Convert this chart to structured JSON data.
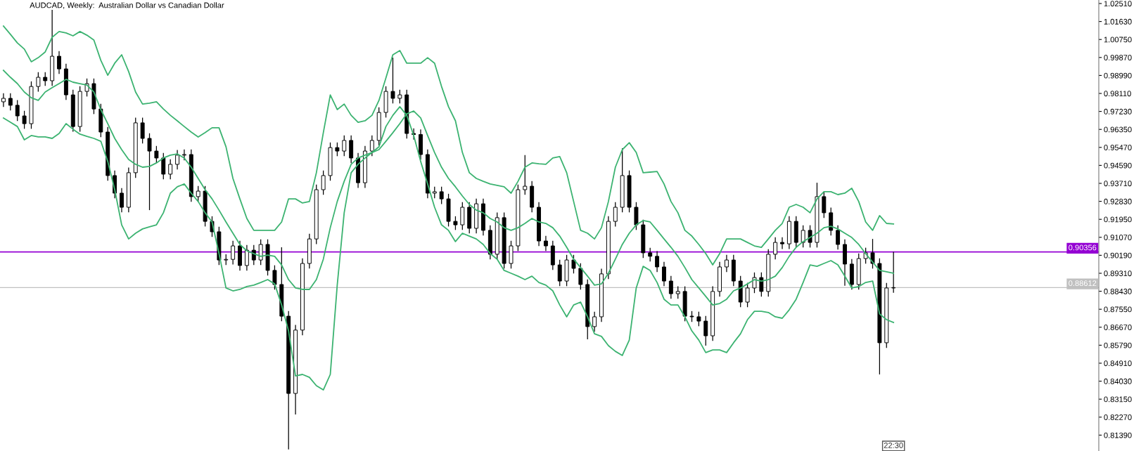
{
  "chart_data": {
    "type": "candlestick",
    "title": "AUDCAD, Weekly:  Australian Dollar vs Canadian Dollar",
    "categories": [
      null,
      null,
      null,
      null,
      null,
      null,
      null,
      null,
      null,
      null,
      null,
      null,
      null,
      null,
      null,
      null,
      null,
      null,
      null,
      null,
      null,
      null,
      null,
      null,
      null,
      null,
      null,
      null,
      null,
      null,
      null,
      null,
      null,
      null,
      null,
      null,
      null,
      null,
      null,
      null,
      null,
      null,
      null,
      null,
      null,
      null,
      null,
      null,
      null,
      null,
      null,
      null,
      null,
      null,
      null,
      null,
      null,
      null,
      null,
      null,
      null,
      null,
      null,
      null,
      null,
      null,
      null,
      null,
      null,
      null,
      null,
      null,
      null,
      null,
      null,
      null,
      null,
      null,
      null,
      null,
      null,
      null,
      null,
      null,
      null,
      null,
      null,
      null,
      null,
      null,
      null,
      null,
      null,
      null,
      null,
      null,
      null,
      null,
      null,
      null,
      null,
      null,
      null,
      null,
      null,
      null,
      null,
      null,
      null,
      null,
      null,
      null,
      null,
      null,
      null,
      null,
      null,
      null,
      null,
      null,
      null,
      null,
      null,
      null,
      null,
      null,
      null,
      null,
      null
    ],
    "ohlc": [
      [
        0.977,
        0.9812,
        0.9745,
        0.9787
      ],
      [
        0.9787,
        0.9812,
        0.9728,
        0.9753
      ],
      [
        0.9753,
        0.9778,
        0.9676,
        0.9701
      ],
      [
        0.9701,
        0.9726,
        0.9638,
        0.9663
      ],
      [
        0.9663,
        0.987,
        0.9638,
        0.9845
      ],
      [
        0.9845,
        0.9915,
        0.982,
        0.989
      ],
      [
        0.989,
        0.9915,
        0.9848,
        0.9873
      ],
      [
        0.9873,
        1.022,
        0.9848,
        0.9993
      ],
      [
        0.9993,
        1.0018,
        0.9906,
        0.9931
      ],
      [
        0.9931,
        0.9956,
        0.9779,
        0.9804
      ],
      [
        0.9804,
        0.9829,
        0.9624,
        0.9649
      ],
      [
        0.9649,
        0.9846,
        0.9624,
        0.9821
      ],
      [
        0.9821,
        0.9884,
        0.9796,
        0.9859
      ],
      [
        0.9859,
        0.9884,
        0.971,
        0.9735
      ],
      [
        0.9735,
        0.976,
        0.9597,
        0.9622
      ],
      [
        0.9622,
        0.9647,
        0.9384,
        0.9409
      ],
      [
        0.9409,
        0.9434,
        0.9298,
        0.9323
      ],
      [
        0.9323,
        0.9348,
        0.9229,
        0.9254
      ],
      [
        0.9254,
        0.9448,
        0.9229,
        0.9423
      ],
      [
        0.9423,
        0.9692,
        0.9398,
        0.9667
      ],
      [
        0.9667,
        0.9692,
        0.9566,
        0.9591
      ],
      [
        0.9591,
        0.9616,
        0.924,
        0.9529
      ],
      [
        0.9529,
        0.9554,
        0.947,
        0.9495
      ],
      [
        0.9495,
        0.952,
        0.9391,
        0.9416
      ],
      [
        0.9416,
        0.9489,
        0.9391,
        0.9464
      ],
      [
        0.9464,
        0.9534,
        0.9439,
        0.9509
      ],
      [
        0.9509,
        0.9537,
        0.9484,
        0.9512
      ],
      [
        0.9512,
        0.9537,
        0.9281,
        0.9306
      ],
      [
        0.9306,
        0.9358,
        0.9281,
        0.9333
      ],
      [
        0.9333,
        0.9358,
        0.916,
        0.9185
      ],
      [
        0.9185,
        0.921,
        0.9109,
        0.9134
      ],
      [
        0.9134,
        0.9159,
        0.8971,
        0.8996
      ],
      [
        0.8996,
        0.9024,
        0.8971,
        0.8999
      ],
      [
        0.8999,
        0.909,
        0.8974,
        0.9065
      ],
      [
        0.9065,
        0.909,
        0.8944,
        0.8969
      ],
      [
        0.8969,
        0.9069,
        0.8944,
        0.9044
      ],
      [
        0.9044,
        0.9069,
        0.8971,
        0.8996
      ],
      [
        0.8996,
        0.9097,
        0.8971,
        0.9072
      ],
      [
        0.9072,
        0.9097,
        0.892,
        0.8945
      ],
      [
        0.8945,
        0.897,
        0.8851,
        0.8876
      ],
      [
        0.8876,
        0.9058,
        0.8696,
        0.8721
      ],
      [
        0.8721,
        0.8746,
        0.8069,
        0.8343
      ],
      [
        0.8343,
        0.8678,
        0.824,
        0.8653
      ],
      [
        0.8653,
        0.9004,
        0.8628,
        0.8979
      ],
      [
        0.8979,
        0.9124,
        0.8954,
        0.9099
      ],
      [
        0.9099,
        0.9365,
        0.9074,
        0.934
      ],
      [
        0.934,
        0.9434,
        0.9315,
        0.9409
      ],
      [
        0.9409,
        0.9571,
        0.9384,
        0.9546
      ],
      [
        0.9546,
        0.9571,
        0.9504,
        0.9529
      ],
      [
        0.9529,
        0.9606,
        0.9504,
        0.9581
      ],
      [
        0.9581,
        0.9606,
        0.947,
        0.9495
      ],
      [
        0.9495,
        0.952,
        0.9349,
        0.9374
      ],
      [
        0.9374,
        0.9554,
        0.9349,
        0.9529
      ],
      [
        0.9529,
        0.9606,
        0.9504,
        0.9581
      ],
      [
        0.9581,
        0.9743,
        0.9556,
        0.9718
      ],
      [
        0.9718,
        0.9846,
        0.9693,
        0.9821
      ],
      [
        0.9821,
        0.9986,
        0.9762,
        0.9787
      ],
      [
        0.9787,
        0.9829,
        0.9762,
        0.9804
      ],
      [
        0.9804,
        0.9829,
        0.959,
        0.9615
      ],
      [
        0.9615,
        0.964,
        0.9585,
        0.961
      ],
      [
        0.961,
        0.9635,
        0.9487,
        0.9512
      ],
      [
        0.9512,
        0.9537,
        0.9298,
        0.9323
      ],
      [
        0.9323,
        0.9355,
        0.9298,
        0.933
      ],
      [
        0.933,
        0.9355,
        0.927,
        0.9295
      ],
      [
        0.9295,
        0.932,
        0.916,
        0.9185
      ],
      [
        0.9185,
        0.921,
        0.9143,
        0.9168
      ],
      [
        0.9168,
        0.9279,
        0.9143,
        0.9254
      ],
      [
        0.9254,
        0.9279,
        0.9126,
        0.9151
      ],
      [
        0.9151,
        0.9296,
        0.9126,
        0.9271
      ],
      [
        0.9271,
        0.9296,
        0.9116,
        0.9141
      ],
      [
        0.9141,
        0.9166,
        0.8999,
        0.9024
      ],
      [
        0.9024,
        0.9228,
        0.8999,
        0.9203
      ],
      [
        0.9203,
        0.9228,
        0.8954,
        0.8979
      ],
      [
        0.8979,
        0.909,
        0.8954,
        0.9065
      ],
      [
        0.9065,
        0.9365,
        0.904,
        0.934
      ],
      [
        0.934,
        0.9509,
        0.9315,
        0.9357
      ],
      [
        0.9357,
        0.9382,
        0.9229,
        0.9254
      ],
      [
        0.9254,
        0.9279,
        0.9064,
        0.9089
      ],
      [
        0.9089,
        0.9114,
        0.904,
        0.9065
      ],
      [
        0.9065,
        0.909,
        0.8947,
        0.8972
      ],
      [
        0.8972,
        0.8997,
        0.8868,
        0.8893
      ],
      [
        0.8893,
        0.9021,
        0.8868,
        0.8996
      ],
      [
        0.8996,
        0.9021,
        0.893,
        0.8955
      ],
      [
        0.8955,
        0.898,
        0.8851,
        0.8876
      ],
      [
        0.8876,
        0.8901,
        0.8608,
        0.867
      ],
      [
        0.867,
        0.8743,
        0.8645,
        0.8718
      ],
      [
        0.8718,
        0.8953,
        0.8693,
        0.8928
      ],
      [
        0.8928,
        0.921,
        0.8903,
        0.9185
      ],
      [
        0.9185,
        0.9279,
        0.916,
        0.9254
      ],
      [
        0.9254,
        0.9543,
        0.9229,
        0.9409
      ],
      [
        0.9409,
        0.9434,
        0.9229,
        0.9254
      ],
      [
        0.9254,
        0.9279,
        0.9143,
        0.9168
      ],
      [
        0.9168,
        0.9193,
        0.9006,
        0.9031
      ],
      [
        0.9031,
        0.9056,
        0.8989,
        0.9014
      ],
      [
        0.9014,
        0.9039,
        0.8937,
        0.8962
      ],
      [
        0.8962,
        0.8987,
        0.8868,
        0.8893
      ],
      [
        0.8893,
        0.8918,
        0.8806,
        0.8831
      ],
      [
        0.8831,
        0.8867,
        0.8806,
        0.8842
      ],
      [
        0.8842,
        0.8867,
        0.8696,
        0.8721
      ],
      [
        0.8721,
        0.8746,
        0.8693,
        0.8718
      ],
      [
        0.8718,
        0.8743,
        0.8672,
        0.8697
      ],
      [
        0.8697,
        0.8722,
        0.8577,
        0.8625
      ],
      [
        0.8625,
        0.8867,
        0.86,
        0.8842
      ],
      [
        0.8842,
        0.8987,
        0.8817,
        0.8962
      ],
      [
        0.8962,
        0.9021,
        0.8937,
        0.8996
      ],
      [
        0.8996,
        0.9021,
        0.8868,
        0.8893
      ],
      [
        0.8893,
        0.8918,
        0.8765,
        0.879
      ],
      [
        0.879,
        0.8884,
        0.8765,
        0.8859
      ],
      [
        0.8859,
        0.8935,
        0.8834,
        0.891
      ],
      [
        0.891,
        0.8935,
        0.8817,
        0.8842
      ],
      [
        0.8842,
        0.9049,
        0.8817,
        0.9024
      ],
      [
        0.9024,
        0.9107,
        0.8999,
        0.9082
      ],
      [
        0.9082,
        0.9107,
        0.905,
        0.9075
      ],
      [
        0.9075,
        0.921,
        0.905,
        0.9185
      ],
      [
        0.9185,
        0.921,
        0.9057,
        0.9082
      ],
      [
        0.9082,
        0.9166,
        0.9057,
        0.9141
      ],
      [
        0.9141,
        0.9166,
        0.9057,
        0.9082
      ],
      [
        0.9082,
        0.9374,
        0.9057,
        0.9306
      ],
      [
        0.9306,
        0.9331,
        0.9202,
        0.9227
      ],
      [
        0.9227,
        0.9252,
        0.9116,
        0.9141
      ],
      [
        0.9141,
        0.9166,
        0.9047,
        0.9072
      ],
      [
        0.9072,
        0.9097,
        0.887,
        0.8976
      ],
      [
        0.8976,
        0.9001,
        0.8851,
        0.8876
      ],
      [
        0.8876,
        0.9028,
        0.8851,
        0.9003
      ],
      [
        0.9003,
        0.9056,
        0.8978,
        0.9031
      ],
      [
        0.9031,
        0.9099,
        0.8954,
        0.8979
      ],
      [
        0.8979,
        0.9004,
        0.8436,
        0.8591
      ],
      [
        0.8591,
        0.8884,
        0.8566,
        0.8859
      ],
      [
        0.8859,
        0.9036,
        0.8836,
        0.8861
      ]
    ],
    "series": [
      {
        "type": "line",
        "color": "#3cb371",
        "values": [
          1.0141,
          1.01,
          1.0058,
          1.0028,
          0.9966,
          0.9986,
          1.0014,
          1.0086,
          1.0114,
          1.0107,
          1.0093,
          1.0114,
          1.0096,
          1.0072,
          0.9973,
          0.99,
          0.9959,
          1.0,
          0.9918,
          0.9818,
          0.9759,
          0.9763,
          0.977,
          0.9735,
          0.9704,
          0.9677,
          0.9649,
          0.9622,
          0.9598,
          0.9619,
          0.9643,
          0.9643,
          0.955,
          0.9395,
          0.9295,
          0.9199,
          0.9141,
          0.9141,
          0.9141,
          0.9141,
          0.9182,
          0.9295,
          0.9295,
          0.9275,
          0.9282,
          0.9423,
          0.9619,
          0.9804,
          0.9732,
          0.9759,
          0.9704,
          0.967,
          0.9677,
          0.9704,
          0.9777,
          0.9887,
          1.0,
          1.0021,
          0.9959,
          0.9959,
          0.9959,
          0.9986,
          0.9959,
          0.9845,
          0.9746,
          0.9677,
          0.9522,
          0.9423,
          0.9395,
          0.9381,
          0.9368,
          0.9361,
          0.9354,
          0.9323,
          0.9381,
          0.945,
          0.9471,
          0.9467,
          0.9464,
          0.9495,
          0.9502,
          0.9423,
          0.9282,
          0.9141,
          0.9127,
          0.9099,
          0.9154,
          0.9282,
          0.945,
          0.9536,
          0.957,
          0.9522,
          0.9423,
          0.9426,
          0.9429,
          0.9368,
          0.9282,
          0.9227,
          0.9141,
          0.9113,
          0.9072,
          0.9027,
          0.8972,
          0.9027,
          0.9099,
          0.9099,
          0.9099,
          0.9082,
          0.9065,
          0.9058,
          0.9099,
          0.9141,
          0.9175,
          0.9254,
          0.9268,
          0.9254,
          0.9227,
          0.9295,
          0.933,
          0.933,
          0.9316,
          0.9323,
          0.9347,
          0.9282,
          0.9182,
          0.9141,
          0.9213,
          0.9175,
          0.9172
        ]
      },
      {
        "type": "line",
        "color": "#3cb371",
        "values": [
          0.9924,
          0.989,
          0.9859,
          0.9818,
          0.979,
          0.9777,
          0.9818,
          0.9839,
          0.9859,
          0.988,
          0.9866,
          0.9859,
          0.9852,
          0.9818,
          0.9732,
          0.9663,
          0.9591,
          0.9536,
          0.9488,
          0.9464,
          0.945,
          0.9454,
          0.9471,
          0.9495,
          0.9509,
          0.9515,
          0.9495,
          0.945,
          0.9395,
          0.934,
          0.9295,
          0.924,
          0.9182,
          0.9127,
          0.9072,
          0.9041,
          0.9027,
          0.9014,
          0.902,
          0.9014,
          0.8972,
          0.89,
          0.8859,
          0.8852,
          0.8852,
          0.89,
          0.9,
          0.9154,
          0.9282,
          0.9381,
          0.9464,
          0.9495,
          0.9509,
          0.9522,
          0.9536,
          0.9577,
          0.9619,
          0.9663,
          0.9711,
          0.9725,
          0.9691,
          0.9605,
          0.9522,
          0.945,
          0.9395,
          0.9354,
          0.9309,
          0.9268,
          0.924,
          0.9227,
          0.9199,
          0.9182,
          0.9154,
          0.9141,
          0.9154,
          0.9175,
          0.9199,
          0.9182,
          0.9175,
          0.9154,
          0.9113,
          0.9058,
          0.9,
          0.8959,
          0.8917,
          0.8873,
          0.8879,
          0.8931,
          0.9,
          0.9072,
          0.9127,
          0.9168,
          0.9189,
          0.9182,
          0.9141,
          0.9099,
          0.9058,
          0.9014,
          0.8959,
          0.89,
          0.8859,
          0.8818,
          0.8776,
          0.8783,
          0.8804,
          0.8845,
          0.8859,
          0.8879,
          0.89,
          0.8893,
          0.89,
          0.8917,
          0.8959,
          0.9014,
          0.9058,
          0.9086,
          0.9106,
          0.9127,
          0.9154,
          0.9161,
          0.9148,
          0.9127,
          0.9106,
          0.9072,
          0.9027,
          0.8986,
          0.8945,
          0.8938,
          0.8931
        ]
      },
      {
        "type": "line",
        "color": "#3cb371",
        "values": [
          0.9691,
          0.967,
          0.9649,
          0.9584,
          0.9605,
          0.9598,
          0.9598,
          0.9591,
          0.9615,
          0.9663,
          0.9636,
          0.9612,
          0.9601,
          0.9591,
          0.9577,
          0.9478,
          0.934,
          0.9168,
          0.9099,
          0.9127,
          0.9148,
          0.9158,
          0.9168,
          0.9227,
          0.9323,
          0.9354,
          0.9368,
          0.9323,
          0.9282,
          0.9227,
          0.9182,
          0.9027,
          0.8859,
          0.8845,
          0.8852,
          0.8866,
          0.8873,
          0.8886,
          0.89,
          0.8879,
          0.8776,
          0.8649,
          0.8429,
          0.8436,
          0.8422,
          0.8381,
          0.836,
          0.8436,
          0.8873,
          0.9227,
          0.9423,
          0.9464,
          0.9495,
          0.9522,
          0.955,
          0.9649,
          0.9704,
          0.9746,
          0.9704,
          0.9605,
          0.9478,
          0.9368,
          0.9254,
          0.9168,
          0.9141,
          0.9086,
          0.9127,
          0.9113,
          0.9099,
          0.9072,
          0.9027,
          0.9,
          0.8945,
          0.8931,
          0.8917,
          0.89,
          0.8917,
          0.8886,
          0.8873,
          0.8845,
          0.8776,
          0.8718,
          0.8776,
          0.879,
          0.8718,
          0.8635,
          0.8622,
          0.8577,
          0.8549,
          0.8529,
          0.8604,
          0.8859,
          0.8965,
          0.8945,
          0.8886,
          0.8804,
          0.8776,
          0.8776,
          0.8718,
          0.8649,
          0.8604,
          0.8543,
          0.8556,
          0.8556,
          0.8543,
          0.8591,
          0.8635,
          0.8704,
          0.8745,
          0.8745,
          0.8739,
          0.8718,
          0.8711,
          0.8752,
          0.8804,
          0.8886,
          0.8972,
          0.8965,
          0.8979,
          0.8993,
          0.8972,
          0.8917,
          0.8859,
          0.8866,
          0.8886,
          0.8893,
          0.8732,
          0.8704,
          0.869
        ]
      }
    ],
    "ylim": [
      0.80613,
      1.02682
    ],
    "yticks": [
      {
        "value": 1.0251,
        "label": "1.02510"
      },
      {
        "value": 1.0163,
        "label": "1.01630"
      },
      {
        "value": 1.0075,
        "label": "1.00750"
      },
      {
        "value": 0.9987,
        "label": "0.99870"
      },
      {
        "value": 0.9899,
        "label": "0.98990"
      },
      {
        "value": 0.9811,
        "label": "0.98110"
      },
      {
        "value": 0.9723,
        "label": "0.97230"
      },
      {
        "value": 0.9635,
        "label": "0.96350"
      },
      {
        "value": 0.9547,
        "label": "0.95470"
      },
      {
        "value": 0.9459,
        "label": "0.94590"
      },
      {
        "value": 0.9371,
        "label": "0.93710"
      },
      {
        "value": 0.9283,
        "label": "0.92830"
      },
      {
        "value": 0.9195,
        "label": "0.91950"
      },
      {
        "value": 0.9107,
        "label": "0.91070"
      },
      {
        "value": 0.9019,
        "label": "0.90190"
      },
      {
        "value": 0.8931,
        "label": "0.89310"
      },
      {
        "value": 0.8843,
        "label": "0.88430"
      },
      {
        "value": 0.8755,
        "label": "0.87550"
      },
      {
        "value": 0.8667,
        "label": "0.86670"
      },
      {
        "value": 0.8579,
        "label": "0.85790"
      },
      {
        "value": 0.8491,
        "label": "0.84910"
      },
      {
        "value": 0.8403,
        "label": "0.84030"
      },
      {
        "value": 0.8315,
        "label": "0.83150"
      },
      {
        "value": 0.8227,
        "label": "0.82270"
      },
      {
        "value": 0.8139,
        "label": "0.81390"
      }
    ],
    "ref_lines": [
      {
        "axis": "y",
        "value": 0.90356,
        "label": "0.90356",
        "color": "#9400d3"
      },
      {
        "axis": "y",
        "value": 0.88612,
        "label": "0.88612",
        "color": "#c0c0c0"
      }
    ],
    "annotations": [
      "22:30"
    ],
    "tick_labels": "y",
    "grid": false,
    "legend": false
  }
}
